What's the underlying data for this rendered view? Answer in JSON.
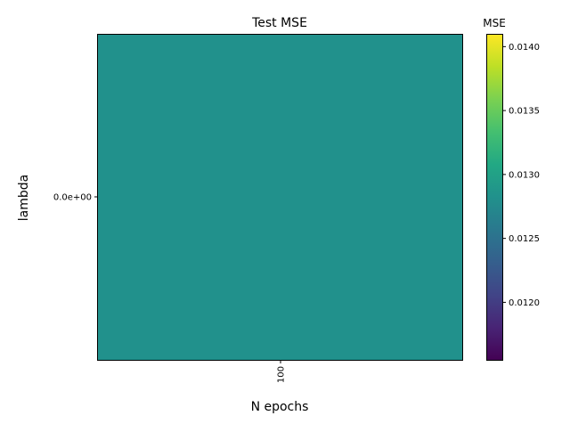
{
  "chart_data": {
    "type": "heatmap",
    "title": "Test MSE",
    "xlabel": "N epochs",
    "ylabel": "lambda",
    "x_categories": [
      "100"
    ],
    "y_categories": [
      "0.0e+00"
    ],
    "values": [
      [
        0.01282
      ]
    ],
    "colormap": "viridis",
    "cell_color": "#21918c",
    "colorbar": {
      "title": "MSE",
      "min": 0.01155,
      "max": 0.0141,
      "ticks": [
        0.012,
        0.0125,
        0.013,
        0.0135,
        0.014
      ],
      "tick_labels": [
        "0.0120",
        "0.0125",
        "0.0130",
        "0.0135",
        "0.0140"
      ]
    },
    "grid": false
  }
}
